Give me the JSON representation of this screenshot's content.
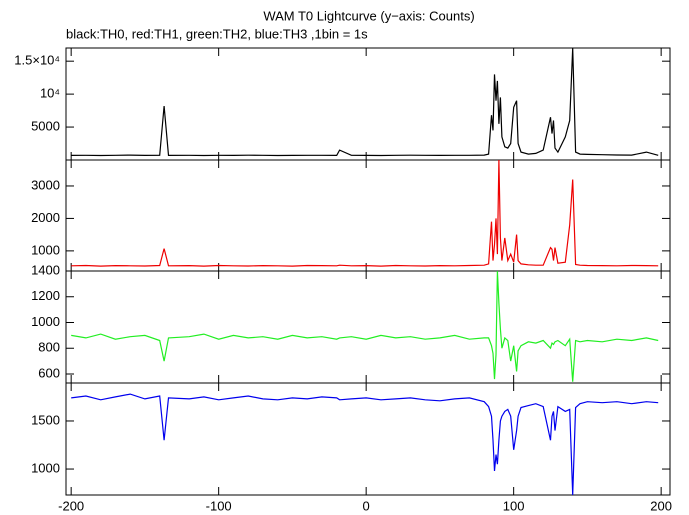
{
  "title": "WAM T0 Lightcurve (y−axis: Counts)",
  "subtitle": "black:TH0, red:TH1, green:TH2, blue:TH3 ,1bin = 1s",
  "chart_data": [
    {
      "type": "line",
      "color": "#000000",
      "x": [
        -200,
        -190,
        -180,
        -170,
        -160,
        -150,
        -140,
        -137,
        -134,
        -120,
        -110,
        -100,
        -90,
        -80,
        -70,
        -60,
        -50,
        -40,
        -30,
        -20,
        -18,
        -10,
        0,
        10,
        20,
        30,
        40,
        50,
        60,
        70,
        80,
        83,
        85,
        86,
        87,
        88,
        89,
        90,
        91,
        92,
        94,
        96,
        98,
        100,
        102,
        103,
        105,
        110,
        115,
        120,
        125,
        126,
        127,
        128,
        130,
        135,
        138,
        140,
        142,
        145,
        150,
        160,
        170,
        180,
        190,
        198
      ],
      "values": [
        700,
        720,
        690,
        710,
        750,
        700,
        720,
        8200,
        700,
        710,
        690,
        720,
        700,
        730,
        710,
        690,
        700,
        720,
        710,
        700,
        1500,
        720,
        700,
        690,
        710,
        730,
        720,
        700,
        710,
        720,
        750,
        900,
        6800,
        4500,
        13000,
        9000,
        12000,
        5500,
        9500,
        3500,
        2000,
        1800,
        2500,
        8000,
        9000,
        2500,
        1200,
        900,
        1000,
        1500,
        6500,
        4000,
        6000,
        1800,
        1200,
        3500,
        6000,
        17000,
        1200,
        900,
        850,
        800,
        760,
        740,
        1200,
        720
      ],
      "xlim": [
        -203.5,
        206
      ],
      "xticks": [
        -200,
        -100,
        0,
        100,
        200
      ],
      "ylim": [
        0,
        17000
      ],
      "yticks": [
        5000,
        {
          "value": 10000,
          "label": "10⁴"
        },
        {
          "value": 15000,
          "label": "1.5×10⁴"
        }
      ]
    },
    {
      "type": "line",
      "color": "#ee0000",
      "x": [
        -200,
        -190,
        -180,
        -170,
        -160,
        -150,
        -140,
        -137,
        -134,
        -120,
        -110,
        -100,
        -90,
        -80,
        -70,
        -60,
        -50,
        -40,
        -30,
        -20,
        -18,
        -10,
        0,
        10,
        20,
        30,
        40,
        50,
        60,
        70,
        80,
        83,
        85,
        86,
        87,
        88,
        89,
        90,
        91,
        92,
        94,
        96,
        98,
        100,
        102,
        103,
        105,
        110,
        115,
        120,
        125,
        126,
        127,
        128,
        130,
        135,
        138,
        140,
        142,
        145,
        150,
        160,
        170,
        180,
        190,
        198
      ],
      "values": [
        540,
        550,
        530,
        545,
        540,
        535,
        550,
        1070,
        540,
        545,
        530,
        550,
        540,
        535,
        545,
        540,
        530,
        550,
        545,
        540,
        560,
        540,
        545,
        530,
        550,
        540,
        535,
        545,
        540,
        550,
        560,
        600,
        1900,
        700,
        1200,
        2000,
        900,
        3800,
        1400,
        700,
        1400,
        700,
        900,
        650,
        1500,
        700,
        600,
        570,
        560,
        560,
        1100,
        1050,
        700,
        1100,
        620,
        650,
        1800,
        3200,
        580,
        560,
        550,
        545,
        540,
        550,
        545,
        540
      ],
      "xlim": [
        -203.5,
        206
      ],
      "xticks": [
        -200,
        -100,
        0,
        100,
        200
      ],
      "ylim": [
        380,
        3800
      ],
      "yticks": [
        1000,
        2000,
        3000
      ]
    },
    {
      "type": "line",
      "color": "#22ee22",
      "x": [
        -200,
        -190,
        -180,
        -170,
        -160,
        -150,
        -140,
        -137,
        -134,
        -120,
        -110,
        -100,
        -90,
        -80,
        -70,
        -60,
        -50,
        -40,
        -30,
        -20,
        -18,
        -10,
        0,
        10,
        20,
        30,
        40,
        50,
        60,
        70,
        80,
        83,
        85,
        86,
        87,
        88,
        89,
        90,
        91,
        92,
        94,
        96,
        98,
        100,
        102,
        103,
        105,
        110,
        115,
        120,
        125,
        126,
        127,
        128,
        130,
        135,
        138,
        140,
        142,
        145,
        150,
        160,
        170,
        180,
        190,
        198
      ],
      "values": [
        900,
        880,
        910,
        870,
        890,
        900,
        860,
        700,
        880,
        890,
        910,
        870,
        900,
        880,
        890,
        870,
        900,
        880,
        890,
        870,
        880,
        890,
        870,
        900,
        880,
        890,
        870,
        880,
        900,
        870,
        880,
        880,
        820,
        760,
        560,
        750,
        1400,
        1150,
        950,
        800,
        880,
        860,
        700,
        820,
        620,
        780,
        820,
        850,
        840,
        860,
        800,
        840,
        830,
        850,
        860,
        820,
        870,
        540,
        860,
        850,
        860,
        850,
        870,
        860,
        880,
        860
      ],
      "xlim": [
        -203.5,
        206
      ],
      "xticks": [
        -200,
        -100,
        0,
        100,
        200
      ],
      "ylim": [
        530,
        1400
      ],
      "yticks": [
        600,
        800,
        1000,
        1200,
        1400
      ]
    },
    {
      "type": "line",
      "color": "#0000ee",
      "x": [
        -200,
        -190,
        -180,
        -170,
        -160,
        -150,
        -140,
        -137,
        -134,
        -120,
        -110,
        -100,
        -90,
        -80,
        -70,
        -60,
        -50,
        -40,
        -30,
        -20,
        -18,
        -10,
        0,
        10,
        20,
        30,
        40,
        50,
        60,
        70,
        80,
        83,
        85,
        86,
        87,
        88,
        89,
        90,
        91,
        92,
        94,
        96,
        98,
        100,
        102,
        103,
        105,
        110,
        115,
        120,
        125,
        126,
        127,
        128,
        130,
        135,
        138,
        140,
        142,
        145,
        150,
        160,
        170,
        180,
        190,
        198
      ],
      "values": [
        1740,
        1760,
        1720,
        1750,
        1780,
        1730,
        1760,
        1300,
        1740,
        1730,
        1750,
        1720,
        1740,
        1760,
        1730,
        1720,
        1740,
        1730,
        1750,
        1740,
        1720,
        1730,
        1740,
        1720,
        1730,
        1740,
        1720,
        1710,
        1730,
        1740,
        1700,
        1650,
        1550,
        1300,
        980,
        1150,
        1050,
        1300,
        1500,
        1550,
        1600,
        1620,
        1550,
        1200,
        1400,
        1550,
        1640,
        1660,
        1680,
        1650,
        1300,
        1550,
        1600,
        1400,
        1650,
        1600,
        1620,
        730,
        1640,
        1680,
        1700,
        1690,
        1700,
        1680,
        1700,
        1690
      ],
      "xlim": [
        -203.5,
        206
      ],
      "xticks": [
        -200,
        -100,
        0,
        100,
        200
      ],
      "ylim": [
        730,
        1895
      ],
      "yticks": [
        1000,
        1500
      ]
    }
  ]
}
